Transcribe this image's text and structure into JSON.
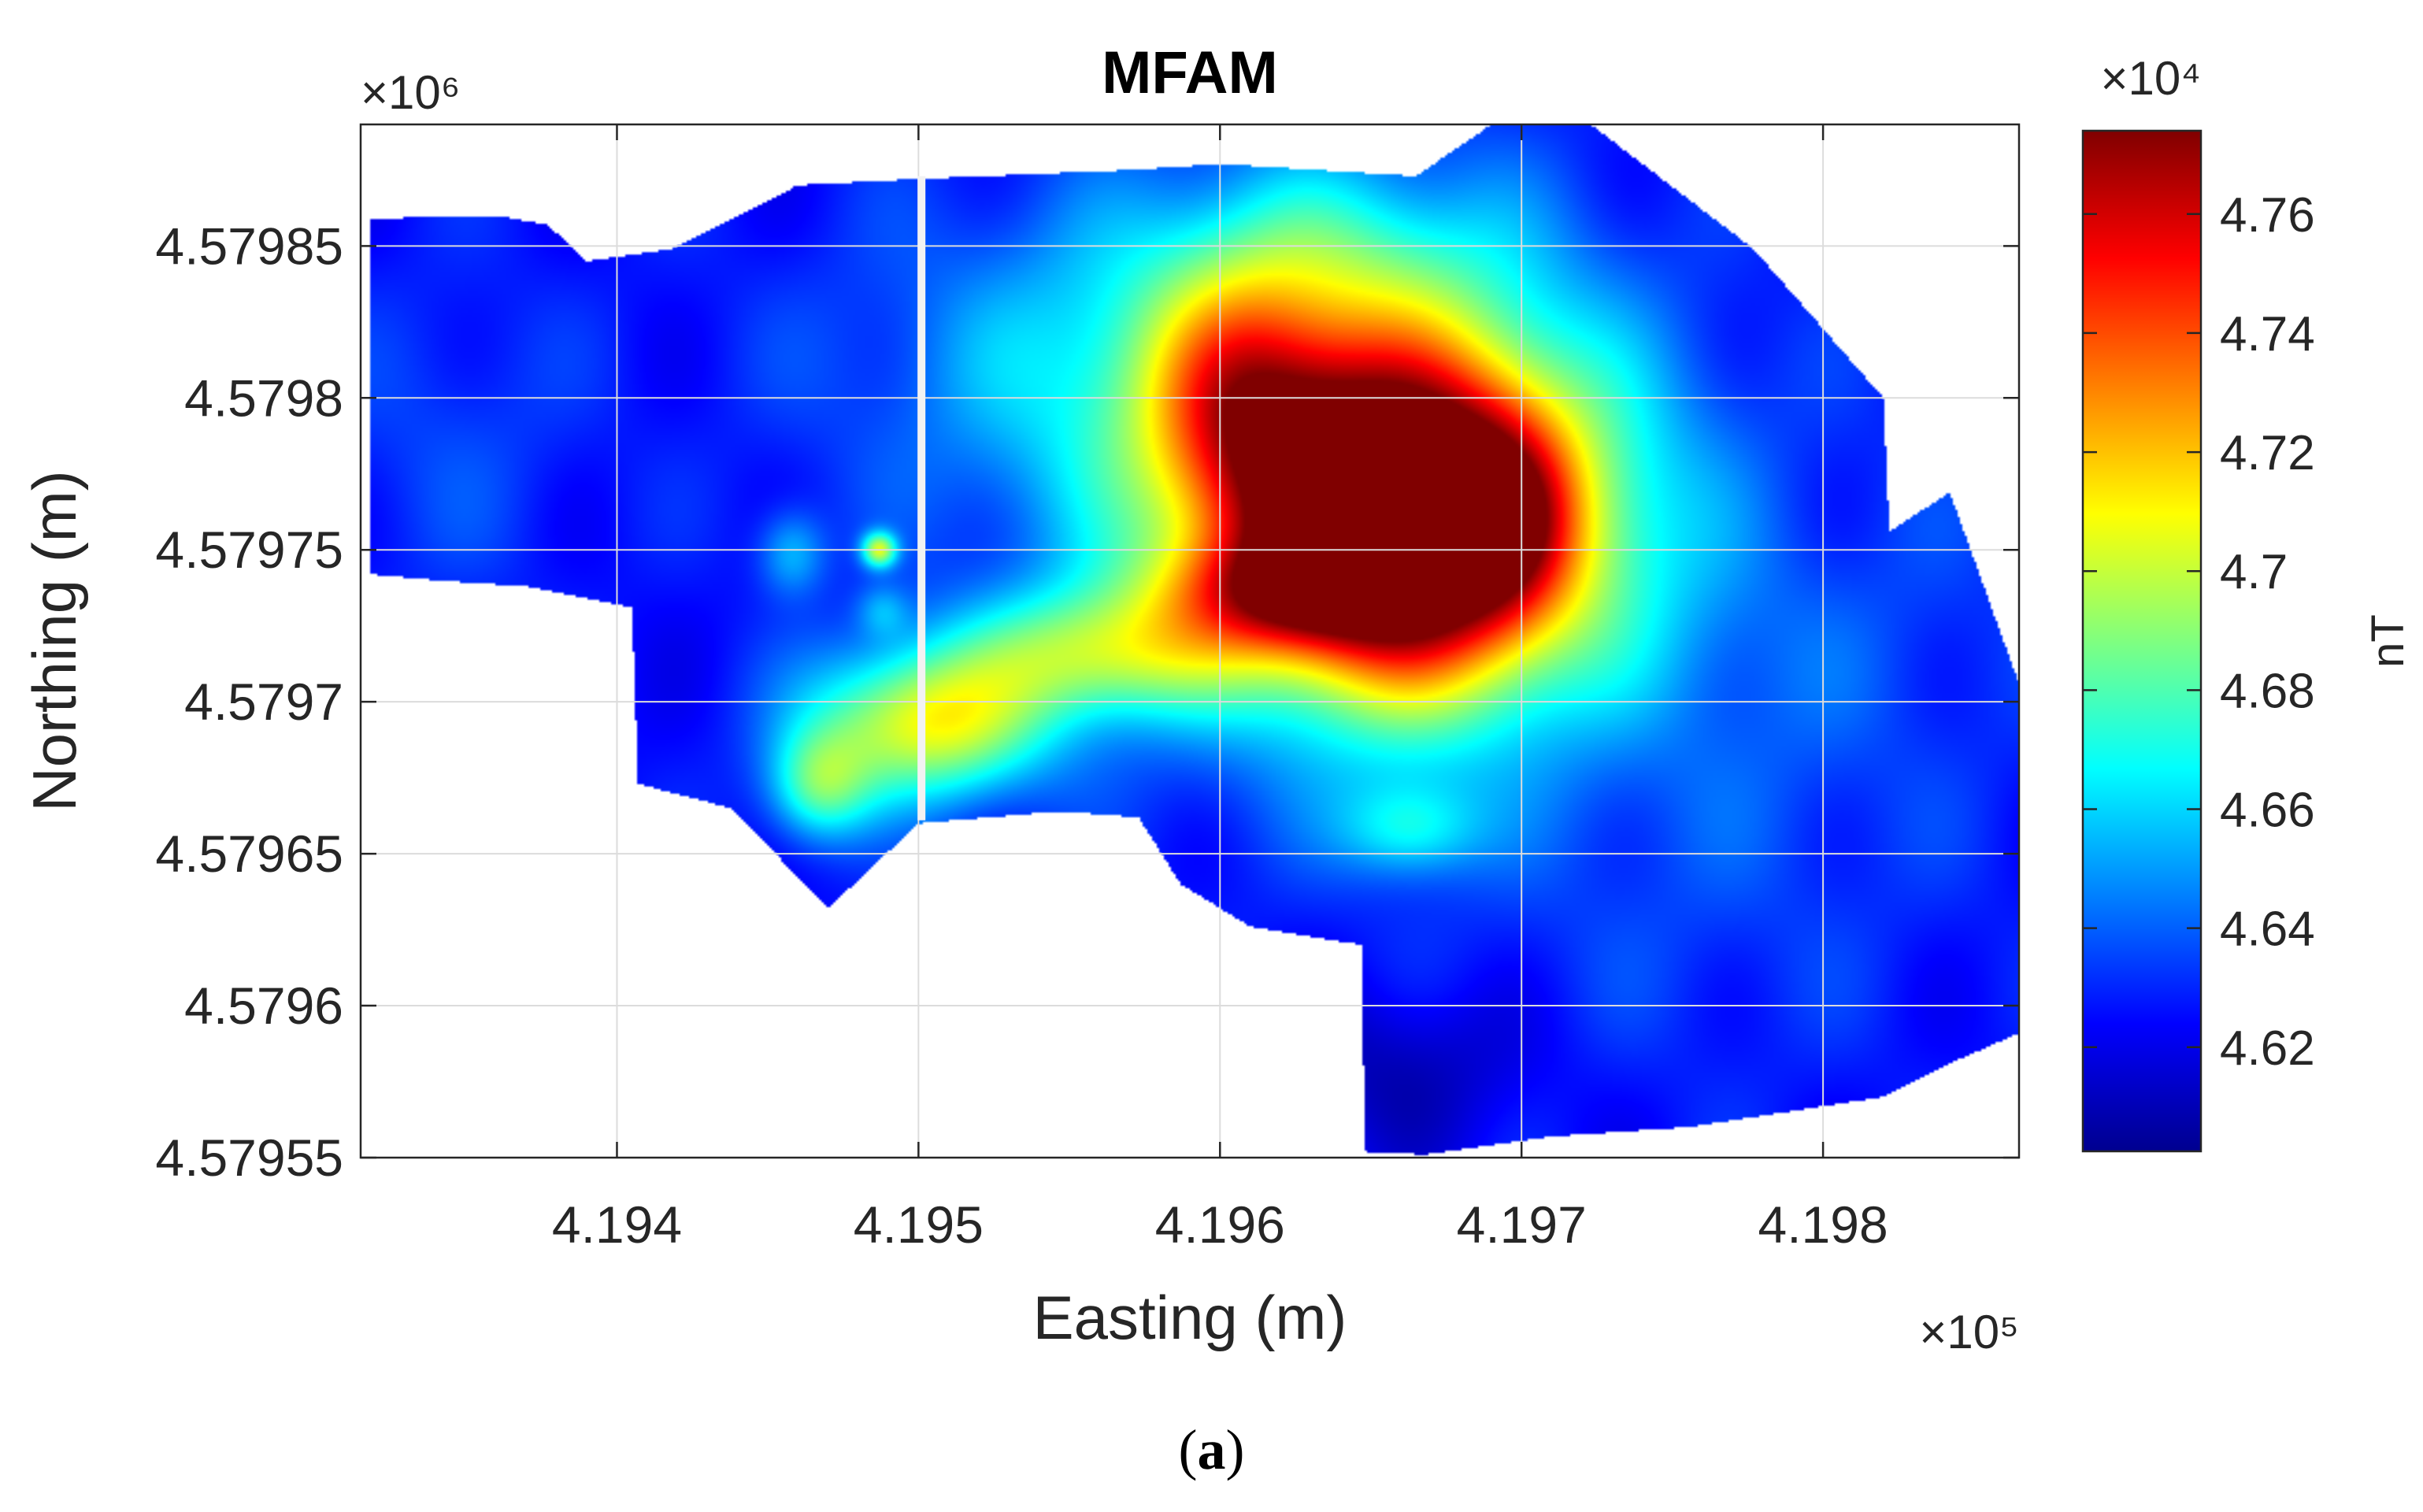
{
  "chart_data": {
    "type": "heatmap",
    "title": "MFAM",
    "xlabel": "Easting (m)",
    "ylabel": "Northing (m)",
    "x_exponent_label": "×10⁵",
    "y_exponent_label": "×10⁶",
    "colorbar_exponent_label": "×10⁴",
    "colorbar_label": "nT",
    "xlim": [
      4.19315,
      4.19865
    ],
    "ylim": [
      4.57955,
      4.57989
    ],
    "clim": [
      4.6025,
      4.774
    ],
    "x_ticks": [
      4.194,
      4.195,
      4.196,
      4.197,
      4.198
    ],
    "x_tick_labels": [
      "4.194",
      "4.195",
      "4.196",
      "4.197",
      "4.198"
    ],
    "y_ticks": [
      4.57985,
      4.5798,
      4.57975,
      4.5797,
      4.57965,
      4.5796,
      4.57955
    ],
    "y_tick_labels": [
      "4.57985",
      "4.5798",
      "4.57975",
      "4.5797",
      "4.57965",
      "4.5796",
      "4.57955"
    ],
    "colorbar_ticks": [
      4.62,
      4.64,
      4.66,
      4.68,
      4.7,
      4.72,
      4.74,
      4.76
    ],
    "colorbar_tick_labels": [
      "4.62",
      "4.64",
      "4.66",
      "4.68",
      "4.7",
      "4.72",
      "4.74",
      "4.76"
    ],
    "colormap": "jet",
    "grid": true,
    "background_value": 4.625,
    "survey_boundary": [
      [
        4.19318,
        4.579859
      ],
      [
        4.1936,
        4.57986
      ],
      [
        4.19377,
        4.579857
      ],
      [
        4.1939,
        4.579845
      ],
      [
        4.19418,
        4.579849
      ],
      [
        4.1946,
        4.57987
      ],
      [
        4.19498,
        4.579872
      ],
      [
        4.1957,
        4.579875
      ],
      [
        4.196,
        4.579877
      ],
      [
        4.19665,
        4.579873
      ],
      [
        4.1969,
        4.57989
      ],
      [
        4.19723,
        4.57989
      ],
      [
        4.19777,
        4.579849
      ],
      [
        4.1982,
        4.5798
      ],
      [
        4.19822,
        4.579756
      ],
      [
        4.19842,
        4.579769
      ],
      [
        4.19865,
        4.579706
      ],
      [
        4.19865,
        4.579591
      ],
      [
        4.19842,
        4.579581
      ],
      [
        4.1982,
        4.57957
      ],
      [
        4.19755,
        4.57956
      ],
      [
        4.1971,
        4.579557
      ],
      [
        4.19668,
        4.579551
      ],
      [
        4.19648,
        4.579552
      ],
      [
        4.19647,
        4.57962
      ],
      [
        4.1961,
        4.579626
      ],
      [
        4.19587,
        4.57964
      ],
      [
        4.19573,
        4.579662
      ],
      [
        4.19547,
        4.579664
      ],
      [
        4.195,
        4.57966
      ],
      [
        4.1947,
        4.579632
      ],
      [
        4.19438,
        4.579665
      ],
      [
        4.19407,
        4.579673
      ],
      [
        4.19405,
        4.579731
      ],
      [
        4.1937,
        4.579738
      ],
      [
        4.1934,
        4.57974
      ],
      [
        4.19318,
        4.579742
      ]
    ],
    "gap_line": {
      "x": 4.19501,
      "y_from": 4.579661,
      "y_to": 4.579873,
      "color": "#f2f2f2"
    },
    "anomalies": [
      {
        "x": 4.19662,
        "y": 4.579758,
        "sx": 0.00038,
        "sy": 3.65e-05,
        "amp": 0.148
      },
      {
        "x": 4.19648,
        "y": 4.579772,
        "sx": 0.00058,
        "sy": 5.8e-05,
        "amp": 0.062
      },
      {
        "x": 4.19608,
        "y": 4.5798,
        "sx": 0.00022,
        "sy": 3e-05,
        "amp": 0.05
      },
      {
        "x": 4.19695,
        "y": 4.57976,
        "sx": 0.00015,
        "sy": 2.2e-05,
        "amp": 0.03
      },
      {
        "x": 4.19618,
        "y": 4.579736,
        "sx": 0.00028,
        "sy": 1.3e-05,
        "amp": 0.055
      },
      {
        "x": 4.1956,
        "y": 4.579716,
        "sx": 0.0003,
        "sy": 1.5e-05,
        "amp": 0.06
      },
      {
        "x": 4.19503,
        "y": 4.579693,
        "sx": 0.00028,
        "sy": 1.8e-05,
        "amp": 0.082
      },
      {
        "x": 4.19467,
        "y": 4.579672,
        "sx": 0.00012,
        "sy": 1.3e-05,
        "amp": 0.05
      },
      {
        "x": 4.19583,
        "y": 4.57981,
        "sx": 0.0007,
        "sy": 3.8e-05,
        "amp": 0.034
      },
      {
        "x": 4.1973,
        "y": 4.579755,
        "sx": 0.0008,
        "sy": 4e-05,
        "amp": 0.015
      },
      {
        "x": 4.19487,
        "y": 4.57975,
        "sx": 4e-05,
        "sy": 4e-06,
        "amp": 0.07
      },
      {
        "x": 4.19458,
        "y": 4.579749,
        "sx": 8e-05,
        "sy": 1e-05,
        "amp": 0.03
      },
      {
        "x": 4.19488,
        "y": 4.57973,
        "sx": 6e-05,
        "sy": 6e-06,
        "amp": 0.02
      },
      {
        "x": 4.19663,
        "y": 4.579658,
        "sx": 0.00016,
        "sy": 1.1e-05,
        "amp": 0.035
      },
      {
        "x": 4.19345,
        "y": 4.579785,
        "sx": 0.0003,
        "sy": 4e-05,
        "amp": 0.01
      },
      {
        "x": 4.1978,
        "y": 4.5797,
        "sx": 0.0006,
        "sy": 5e-05,
        "amp": 0.01
      },
      {
        "x": 4.1975,
        "y": 4.57962,
        "sx": 0.0006,
        "sy": 4e-05,
        "amp": 0.006
      },
      {
        "x": 4.1964,
        "y": 4.57985,
        "sx": 0.0004,
        "sy": 2e-05,
        "amp": 0.015
      },
      {
        "x": 4.1966,
        "y": 4.57958,
        "sx": 0.0003,
        "sy": 2e-05,
        "amp": -0.015
      },
      {
        "x": 4.1979,
        "y": 4.57976,
        "sx": 0.0003,
        "sy": 3e-05,
        "amp": -0.008
      }
    ]
  },
  "caption": {
    "label": "a"
  }
}
